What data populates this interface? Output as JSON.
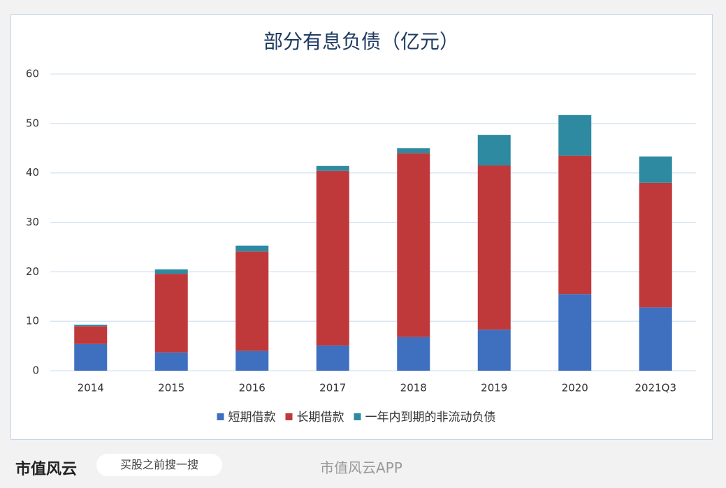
{
  "chart_data": {
    "type": "stacked-bar",
    "title": "部分有息负债（亿元）",
    "categories": [
      "2014",
      "2015",
      "2016",
      "2017",
      "2018",
      "2019",
      "2020",
      "2021Q3"
    ],
    "series": [
      {
        "name": "短期借款",
        "color": "#3f6fbf",
        "values": [
          5.4,
          3.7,
          4.0,
          5.1,
          6.8,
          8.3,
          15.5,
          12.8
        ]
      },
      {
        "name": "长期借款",
        "color": "#c0393a",
        "values": [
          3.6,
          15.9,
          20.1,
          35.3,
          37.2,
          33.2,
          28.0,
          25.2
        ]
      },
      {
        "name": "一年内到期的非流动负债",
        "color": "#2e8aa0",
        "values": [
          0.3,
          0.9,
          1.2,
          1.0,
          1.0,
          6.2,
          8.2,
          5.3
        ]
      }
    ],
    "ylim": [
      0,
      60
    ],
    "yticks": [
      0,
      10,
      20,
      30,
      40,
      50,
      60
    ],
    "grid": true,
    "legend": "bottom"
  },
  "footer": {
    "logo": "市值风云",
    "search": "买股之前搜一搜",
    "app": "市值风云APP"
  }
}
